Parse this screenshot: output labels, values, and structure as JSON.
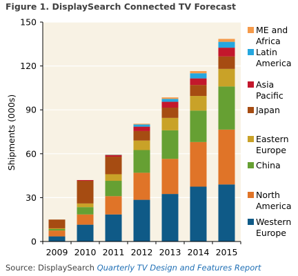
{
  "chart_data": {
    "type": "bar",
    "stacked": true,
    "title": "Figure 1. DisplaySearch Connected TV Forecast",
    "ylabel": "Shipments (000s)",
    "xlabel": "",
    "categories": [
      "2009",
      "2010",
      "2011",
      "2012",
      "2013",
      "2014",
      "2015"
    ],
    "ylim": [
      0,
      150
    ],
    "yticks": [
      0,
      30,
      60,
      90,
      120,
      150
    ],
    "grid": true,
    "legend_position": "right",
    "series": [
      {
        "name": "Western Europe",
        "color": "#0f5a87",
        "values": [
          3.5,
          11.5,
          18.5,
          28.5,
          32.5,
          37.5,
          39
        ]
      },
      {
        "name": "North America",
        "color": "#e07428",
        "values": [
          4,
          7,
          12.5,
          18.5,
          24,
          30.5,
          37.5
        ]
      },
      {
        "name": "China",
        "color": "#66a033",
        "values": [
          1,
          5,
          10.5,
          15.5,
          19.5,
          21.5,
          29.5
        ]
      },
      {
        "name": "Eastern Europe",
        "color": "#c9a228",
        "values": [
          0.5,
          2.5,
          4.5,
          6.5,
          8.5,
          10,
          12
        ]
      },
      {
        "name": "Japan",
        "color": "#a64c12",
        "values": [
          6,
          15.5,
          12,
          6.5,
          7,
          7.5,
          8.5
        ]
      },
      {
        "name": "Asia Pacific",
        "color": "#c3172c",
        "values": [
          0,
          0.5,
          1,
          3,
          4,
          4.5,
          6
        ]
      },
      {
        "name": "Latin America",
        "color": "#25a7df",
        "values": [
          0,
          0,
          0.2,
          1.5,
          2,
          3.5,
          4
        ]
      },
      {
        "name": "ME and Africa",
        "color": "#f59a4a",
        "values": [
          0,
          0,
          0.3,
          0.5,
          1,
          1.5,
          2
        ]
      }
    ],
    "legend": [
      {
        "series": 7,
        "lines": [
          "ME and",
          "Africa"
        ]
      },
      {
        "series": 6,
        "lines": [
          "Latin",
          "America"
        ]
      },
      {
        "series": 5,
        "lines": [
          "Asia",
          "Pacific"
        ]
      },
      {
        "series": 4,
        "lines": [
          "Japan"
        ]
      },
      {
        "series": 3,
        "lines": [
          "Eastern",
          "Europe"
        ]
      },
      {
        "series": 2,
        "lines": [
          "China"
        ]
      },
      {
        "series": 1,
        "lines": [
          "North",
          "America"
        ]
      },
      {
        "series": 0,
        "lines": [
          "Western",
          "Europe"
        ]
      }
    ],
    "colors": {
      "plot_background": "#f8f2e4",
      "gridline": "#ffffff",
      "axis": "#000000"
    }
  },
  "source": {
    "prefix": "Source: DisplaySearch ",
    "report": "Quarterly TV Design and Features Report"
  }
}
